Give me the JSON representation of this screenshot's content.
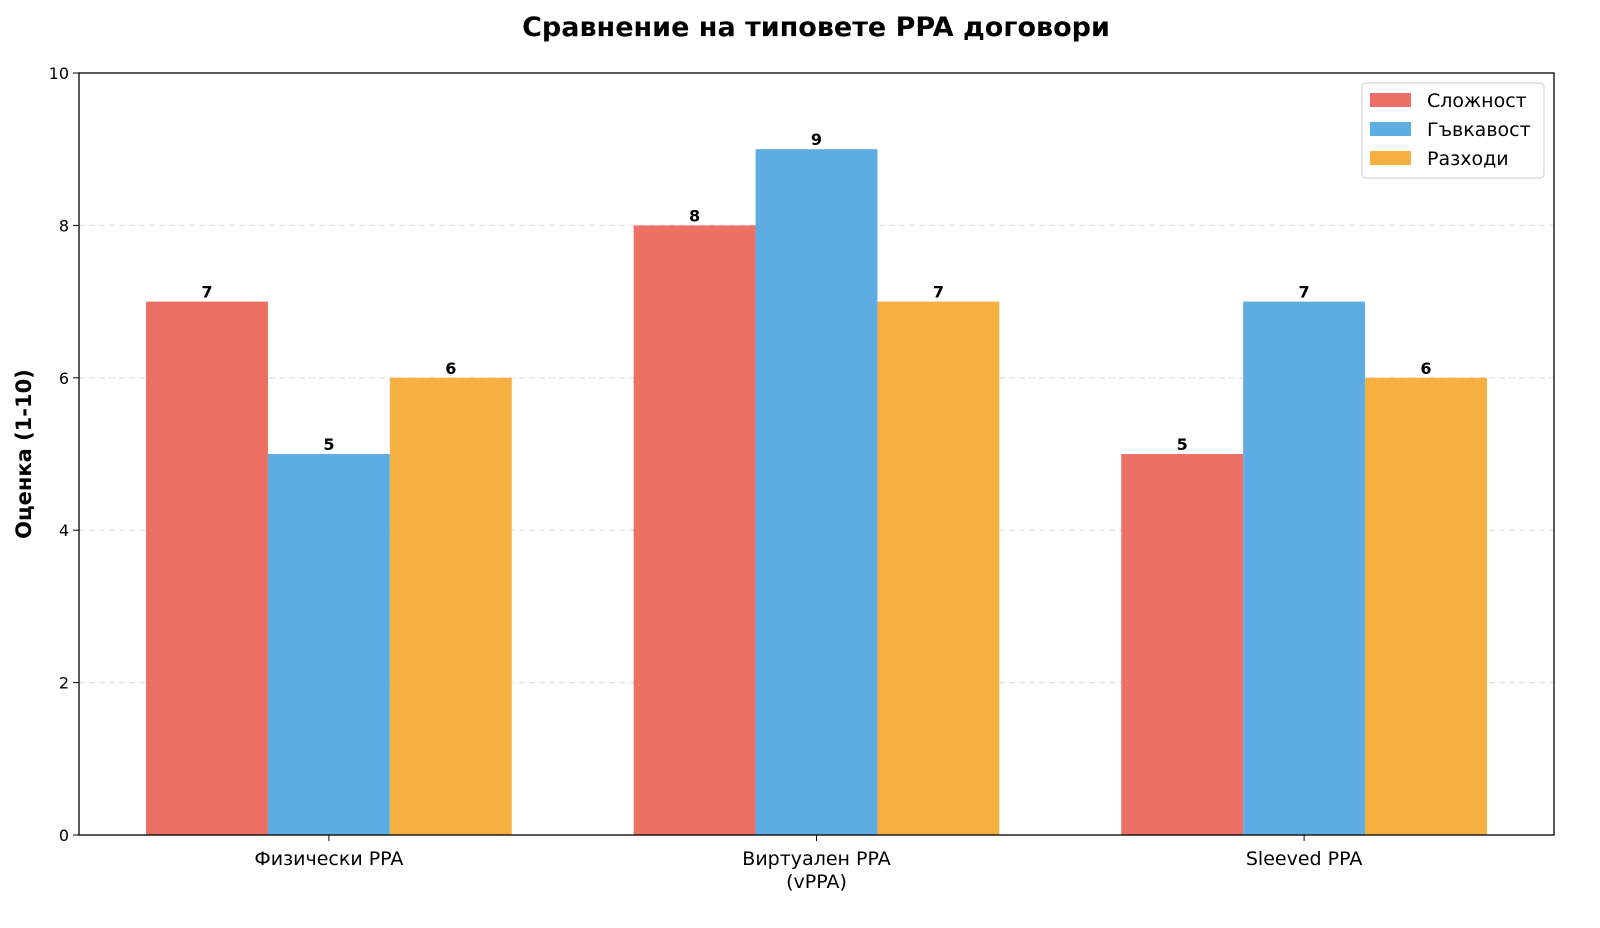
{
  "chart_data": {
    "type": "bar",
    "title": "Сравнение на типовете PPA договори",
    "xlabel": "",
    "ylabel": "Оценка (1-10)",
    "ylim": [
      0,
      10
    ],
    "yticks": [
      0,
      2,
      4,
      6,
      8,
      10
    ],
    "grid": "y dashed",
    "legend_position": "top-right",
    "categories": [
      "Физически PPA",
      "Виртуален PPA\n(vPPA)",
      "Sleeved PPA"
    ],
    "series": [
      {
        "name": "Сложност",
        "color": "#EC7063",
        "values": [
          7,
          8,
          5
        ]
      },
      {
        "name": "Гъвкавост",
        "color": "#5DADE2",
        "values": [
          5,
          9,
          7
        ]
      },
      {
        "name": "Разходи",
        "color": "#F5B041",
        "values": [
          6,
          7,
          6
        ]
      }
    ]
  }
}
